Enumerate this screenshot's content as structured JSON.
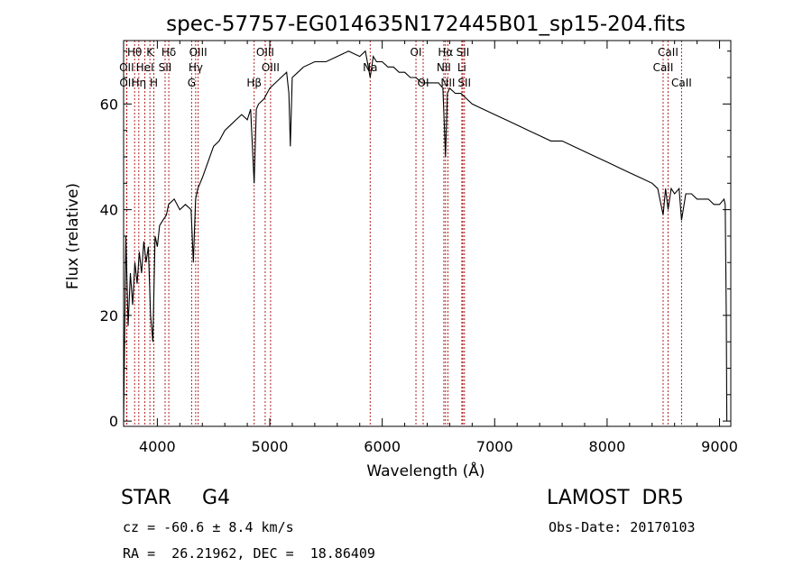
{
  "chart_data": {
    "type": "line",
    "title": "spec-57757-EG014635N172445B01_sp15-204.fits",
    "xlabel": "Wavelength (Å)",
    "ylabel": "Flux (relative)",
    "xlim": [
      3700,
      9100
    ],
    "ylim": [
      -1,
      72
    ],
    "x_ticks": [
      4000,
      5000,
      6000,
      7000,
      8000,
      9000
    ],
    "y_ticks": [
      0,
      20,
      40,
      60
    ],
    "grid": false,
    "line_color": "#000000",
    "marker_color": "#b22222",
    "series": [
      {
        "x": [
          3700,
          3720,
          3740,
          3760,
          3780,
          3800,
          3820,
          3840,
          3860,
          3880,
          3900,
          3920,
          3940,
          3960,
          3980,
          4000,
          4020,
          4050,
          4080,
          4100,
          4150,
          4200,
          4250,
          4300,
          4320,
          4340,
          4360,
          4380,
          4400,
          4450,
          4500,
          4550,
          4600,
          4650,
          4700,
          4750,
          4800,
          4830,
          4861,
          4880,
          4900,
          4950,
          5000,
          5050,
          5100,
          5150,
          5170,
          5183,
          5200,
          5250,
          5300,
          5400,
          5500,
          5600,
          5700,
          5800,
          5850,
          5893,
          5920,
          5950,
          6000,
          6050,
          6100,
          6150,
          6200,
          6250,
          6300,
          6350,
          6400,
          6450,
          6500,
          6540,
          6563,
          6580,
          6600,
          6650,
          6700,
          6750,
          6800,
          6900,
          7000,
          7100,
          7200,
          7300,
          7400,
          7500,
          7600,
          7700,
          7800,
          7900,
          8000,
          8100,
          8200,
          8300,
          8400,
          8450,
          8498,
          8520,
          8542,
          8570,
          8600,
          8640,
          8662,
          8700,
          8750,
          8800,
          8850,
          8900,
          8950,
          9000,
          9040,
          9050,
          9060,
          9065
        ],
        "y": [
          0,
          35,
          18,
          28,
          22,
          30,
          26,
          32,
          28,
          34,
          30,
          33,
          20,
          15,
          35,
          33,
          37,
          38,
          39,
          41,
          42,
          40,
          41,
          40,
          30,
          42,
          44,
          45,
          46,
          49,
          52,
          53,
          55,
          56,
          57,
          58,
          57,
          59,
          45,
          59,
          60,
          61,
          63,
          64,
          65,
          66,
          62,
          52,
          65,
          66,
          67,
          68,
          68,
          69,
          70,
          69,
          70,
          65,
          69,
          68,
          68,
          67,
          67,
          66,
          66,
          65,
          65,
          64,
          64,
          64,
          64,
          63,
          50,
          62,
          63,
          62,
          62,
          61,
          60,
          59,
          58,
          57,
          56,
          55,
          54,
          53,
          53,
          52,
          51,
          50,
          49,
          48,
          47,
          46,
          45,
          44,
          39,
          44,
          40,
          44,
          43,
          44,
          38,
          43,
          43,
          42,
          42,
          42,
          41,
          41,
          42,
          41,
          20,
          0
        ]
      }
    ],
    "lines": [
      {
        "label": "Hθ",
        "x": 3798,
        "row": 0
      },
      {
        "label": "OII",
        "x": 3727,
        "row": 1
      },
      {
        "label": "OII",
        "x": 3729,
        "row": 2
      },
      {
        "label": "Hη",
        "x": 3835,
        "row": 2
      },
      {
        "label": "K",
        "x": 3934,
        "row": 0
      },
      {
        "label": "HeI",
        "x": 3889,
        "row": 1
      },
      {
        "label": "H",
        "x": 3969,
        "row": 2
      },
      {
        "label": "Hδ",
        "x": 4102,
        "row": 0
      },
      {
        "label": "SII",
        "x": 4069,
        "row": 1
      },
      {
        "label": "OIII",
        "x": 4363,
        "row": 0
      },
      {
        "label": "Hγ",
        "x": 4341,
        "row": 1
      },
      {
        "label": "G",
        "x": 4305,
        "row": 2
      },
      {
        "label": "OIII",
        "x": 4959,
        "row": 0
      },
      {
        "label": "OIII",
        "x": 5007,
        "row": 1
      },
      {
        "label": "Hβ",
        "x": 4861,
        "row": 2
      },
      {
        "label": "Na",
        "x": 5893,
        "row": 1
      },
      {
        "label": "OI",
        "x": 6300,
        "row": 0
      },
      {
        "label": "OI",
        "x": 6364,
        "row": 2
      },
      {
        "label": "Hα",
        "x": 6563,
        "row": 0
      },
      {
        "label": "SII",
        "x": 6717,
        "row": 0
      },
      {
        "label": "NII",
        "x": 6548,
        "row": 1
      },
      {
        "label": "Li",
        "x": 6708,
        "row": 1
      },
      {
        "label": "NII",
        "x": 6584,
        "row": 2
      },
      {
        "label": "SII",
        "x": 6731,
        "row": 2
      },
      {
        "label": "CaII",
        "x": 8542,
        "row": 0
      },
      {
        "label": "CaII",
        "x": 8498,
        "row": 1
      },
      {
        "label": "CaII",
        "x": 8662,
        "row": 2
      }
    ]
  },
  "info": {
    "class": "STAR",
    "subclass": "G4",
    "survey": "LAMOST  DR5",
    "cz": "cz = -60.6 ± 8.4 km/s",
    "obs_date": "Obs-Date: 20170103",
    "coords": "RA =  26.21962, DEC =  18.86409"
  }
}
